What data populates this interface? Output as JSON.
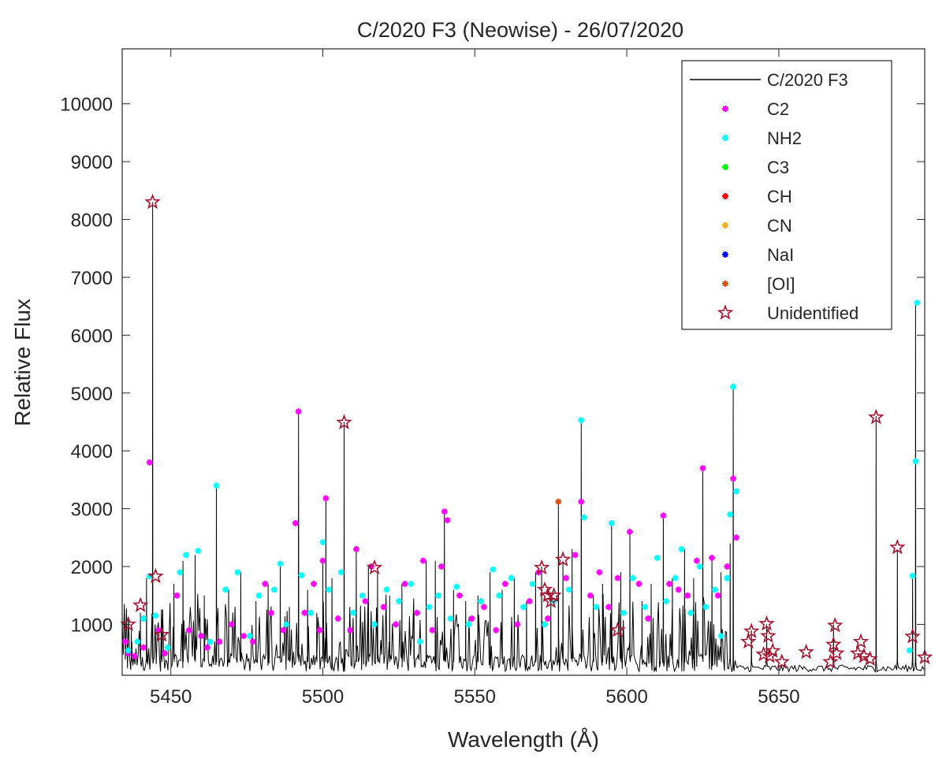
{
  "chart_data": {
    "type": "line",
    "title": "C/2020 F3 (Neowise) - 26/07/2020",
    "xlabel": "Wavelength (Å)",
    "ylabel": "Relative Flux",
    "xlim": [
      5434,
      5698
    ],
    "ylim": [
      120,
      10950
    ],
    "xticks": [
      5450,
      5500,
      5550,
      5600,
      5650
    ],
    "yticks": [
      1000,
      2000,
      3000,
      4000,
      5000,
      6000,
      7000,
      8000,
      9000,
      10000
    ],
    "grid": false,
    "legend_position": "top-right",
    "baseline": 200,
    "spectrum_peaks": [
      [
        5437,
        900
      ],
      [
        5440,
        1200
      ],
      [
        5442,
        1800
      ],
      [
        5444,
        8300
      ],
      [
        5447,
        1100
      ],
      [
        5451,
        1700
      ],
      [
        5454,
        2100
      ],
      [
        5458,
        2200
      ],
      [
        5461,
        1500
      ],
      [
        5465,
        3400
      ],
      [
        5469,
        1600
      ],
      [
        5473,
        1900
      ],
      [
        5478,
        1400
      ],
      [
        5482,
        1700
      ],
      [
        5486,
        2000
      ],
      [
        5489,
        1300
      ],
      [
        5492,
        4700
      ],
      [
        5495,
        1600
      ],
      [
        5498,
        1200
      ],
      [
        5500,
        2100
      ],
      [
        5501,
        3200
      ],
      [
        5503,
        1800
      ],
      [
        5507,
        4500
      ],
      [
        5511,
        2300
      ],
      [
        5515,
        2000
      ],
      [
        5518,
        1900
      ],
      [
        5522,
        1500
      ],
      [
        5526,
        1700
      ],
      [
        5530,
        1200
      ],
      [
        5534,
        2100
      ],
      [
        5537,
        2100
      ],
      [
        5540,
        3000
      ],
      [
        5543,
        1600
      ],
      [
        5547,
        1400
      ],
      [
        5551,
        1500
      ],
      [
        5555,
        1900
      ],
      [
        5559,
        1600
      ],
      [
        5563,
        1800
      ],
      [
        5567,
        1400
      ],
      [
        5570,
        1900
      ],
      [
        5572,
        2000
      ],
      [
        5575,
        1500
      ],
      [
        5577.5,
        3120
      ],
      [
        5579,
        2100
      ],
      [
        5582,
        2300
      ],
      [
        5585,
        4550
      ],
      [
        5589,
        1500
      ],
      [
        5592,
        1700
      ],
      [
        5595,
        2750
      ],
      [
        5598,
        1900
      ],
      [
        5601,
        2600
      ],
      [
        5605,
        1400
      ],
      [
        5608,
        1700
      ],
      [
        5612,
        2900
      ],
      [
        5615,
        1800
      ],
      [
        5619,
        2300
      ],
      [
        5622,
        1800
      ],
      [
        5625,
        3700
      ],
      [
        5628,
        2100
      ],
      [
        5631,
        1900
      ],
      [
        5634,
        2400
      ],
      [
        5635,
        5100
      ],
      [
        5641,
        900
      ],
      [
        5646,
        1000
      ],
      [
        5668,
        1000
      ],
      [
        5682,
        4600
      ],
      [
        5689,
        2300
      ],
      [
        5694,
        1800
      ],
      [
        5695,
        6550
      ]
    ],
    "series": [
      {
        "name": "C/2020 F3",
        "color": "#000000",
        "marker": "line",
        "points": []
      },
      {
        "name": "C2",
        "color": "#ff00ff",
        "marker": "asterisk",
        "points": [
          [
            5435,
            700
          ],
          [
            5436,
            500
          ],
          [
            5438,
            450
          ],
          [
            5441,
            600
          ],
          [
            5443,
            3800
          ],
          [
            5446,
            900
          ],
          [
            5448,
            500
          ],
          [
            5452,
            1500
          ],
          [
            5456,
            900
          ],
          [
            5460,
            800
          ],
          [
            5462,
            600
          ],
          [
            5466,
            700
          ],
          [
            5470,
            1000
          ],
          [
            5474,
            800
          ],
          [
            5477,
            700
          ],
          [
            5481,
            1700
          ],
          [
            5483,
            1200
          ],
          [
            5487,
            900
          ],
          [
            5491,
            2750
          ],
          [
            5492,
            4680
          ],
          [
            5494,
            1200
          ],
          [
            5497,
            1700
          ],
          [
            5499,
            900
          ],
          [
            5500,
            2100
          ],
          [
            5501,
            3180
          ],
          [
            5505,
            1100
          ],
          [
            5509,
            900
          ],
          [
            5511,
            2300
          ],
          [
            5514,
            1400
          ],
          [
            5516,
            2000
          ],
          [
            5520,
            1300
          ],
          [
            5524,
            1000
          ],
          [
            5527,
            1700
          ],
          [
            5531,
            1200
          ],
          [
            5533,
            2100
          ],
          [
            5536,
            900
          ],
          [
            5539,
            2000
          ],
          [
            5540,
            2950
          ],
          [
            5541,
            2800
          ],
          [
            5545,
            1500
          ],
          [
            5549,
            1100
          ],
          [
            5553,
            1300
          ],
          [
            5557,
            900
          ],
          [
            5560,
            1700
          ],
          [
            5564,
            1000
          ],
          [
            5568,
            1400
          ],
          [
            5571,
            1900
          ],
          [
            5574,
            1100
          ],
          [
            5580,
            1800
          ],
          [
            5583,
            2200
          ],
          [
            5585,
            3120
          ],
          [
            5588,
            1500
          ],
          [
            5591,
            1900
          ],
          [
            5594,
            1300
          ],
          [
            5597,
            1800
          ],
          [
            5601,
            2600
          ],
          [
            5604,
            1700
          ],
          [
            5607,
            1100
          ],
          [
            5612,
            2880
          ],
          [
            5614,
            1700
          ],
          [
            5617,
            1600
          ],
          [
            5620,
            1500
          ],
          [
            5623,
            2100
          ],
          [
            5625,
            3700
          ],
          [
            5628,
            2150
          ],
          [
            5630,
            1500
          ],
          [
            5633,
            2000
          ],
          [
            5635,
            3520
          ],
          [
            5636,
            2500
          ]
        ]
      },
      {
        "name": "NH2",
        "color": "#00ffff",
        "marker": "asterisk",
        "points": [
          [
            5436,
            550
          ],
          [
            5439,
            700
          ],
          [
            5441,
            1100
          ],
          [
            5443,
            1830
          ],
          [
            5445,
            1150
          ],
          [
            5449,
            600
          ],
          [
            5453,
            1900
          ],
          [
            5455,
            2200
          ],
          [
            5459,
            2270
          ],
          [
            5463,
            700
          ],
          [
            5465,
            3400
          ],
          [
            5468,
            1600
          ],
          [
            5472,
            1900
          ],
          [
            5476,
            800
          ],
          [
            5479,
            1500
          ],
          [
            5484,
            1600
          ],
          [
            5486,
            2050
          ],
          [
            5488,
            1000
          ],
          [
            5493,
            1850
          ],
          [
            5496,
            1200
          ],
          [
            5500,
            2420
          ],
          [
            5502,
            1600
          ],
          [
            5506,
            1900
          ],
          [
            5510,
            1200
          ],
          [
            5513,
            1500
          ],
          [
            5517,
            1000
          ],
          [
            5521,
            1600
          ],
          [
            5525,
            1400
          ],
          [
            5529,
            1700
          ],
          [
            5532,
            700
          ],
          [
            5535,
            1300
          ],
          [
            5538,
            1500
          ],
          [
            5542,
            1100
          ],
          [
            5544,
            1650
          ],
          [
            5548,
            1000
          ],
          [
            5552,
            1400
          ],
          [
            5556,
            1950
          ],
          [
            5558,
            1500
          ],
          [
            5562,
            1800
          ],
          [
            5566,
            1300
          ],
          [
            5569,
            1700
          ],
          [
            5573,
            1000
          ],
          [
            5576,
            1400
          ],
          [
            5581,
            1600
          ],
          [
            5585,
            4530
          ],
          [
            5586,
            2850
          ],
          [
            5590,
            1300
          ],
          [
            5595,
            2750
          ],
          [
            5599,
            1200
          ],
          [
            5602,
            1800
          ],
          [
            5606,
            1300
          ],
          [
            5610,
            2150
          ],
          [
            5613,
            1400
          ],
          [
            5616,
            1800
          ],
          [
            5618,
            2300
          ],
          [
            5621,
            1200
          ],
          [
            5624,
            2000
          ],
          [
            5626,
            1300
          ],
          [
            5629,
            1600
          ],
          [
            5631,
            800
          ],
          [
            5633,
            1800
          ],
          [
            5634,
            2900
          ],
          [
            5635,
            5110
          ],
          [
            5636,
            3300
          ],
          [
            5693,
            550
          ],
          [
            5694,
            1840
          ],
          [
            5695,
            3820
          ],
          [
            5695.5,
            6560
          ]
        ]
      },
      {
        "name": "C3",
        "color": "#00ff00",
        "marker": "asterisk",
        "points": []
      },
      {
        "name": "CH",
        "color": "#ff0000",
        "marker": "asterisk",
        "points": []
      },
      {
        "name": "CN",
        "color": "#edb120",
        "marker": "asterisk",
        "points": []
      },
      {
        "name": "NaI",
        "color": "#0000ff",
        "marker": "asterisk",
        "points": []
      },
      {
        "name": "[OI]",
        "color": "#d95319",
        "marker": "asterisk",
        "points": [
          [
            5577.5,
            3120
          ]
        ]
      },
      {
        "name": "Unidentified",
        "color": "#a2142f",
        "marker": "star",
        "points": [
          [
            5436,
            1000
          ],
          [
            5440,
            1330
          ],
          [
            5444,
            8300
          ],
          [
            5445,
            1830
          ],
          [
            5447,
            820
          ],
          [
            5507,
            4490
          ],
          [
            5517,
            1980
          ],
          [
            5572,
            1980
          ],
          [
            5573,
            1600
          ],
          [
            5574,
            1500
          ],
          [
            5575,
            1400
          ],
          [
            5576,
            1500
          ],
          [
            5579,
            2120
          ],
          [
            5597,
            900
          ],
          [
            5640,
            700
          ],
          [
            5641,
            880
          ],
          [
            5645,
            480
          ],
          [
            5646,
            1010
          ],
          [
            5646.5,
            800
          ],
          [
            5647,
            450
          ],
          [
            5648,
            540
          ],
          [
            5651,
            350
          ],
          [
            5659,
            520
          ],
          [
            5667,
            350
          ],
          [
            5668,
            650
          ],
          [
            5668.5,
            980
          ],
          [
            5669,
            500
          ],
          [
            5676,
            500
          ],
          [
            5677,
            700
          ],
          [
            5678,
            450
          ],
          [
            5680,
            400
          ],
          [
            5682,
            4580
          ],
          [
            5689,
            2330
          ],
          [
            5694,
            790
          ],
          [
            5698,
            430
          ]
        ]
      }
    ]
  }
}
